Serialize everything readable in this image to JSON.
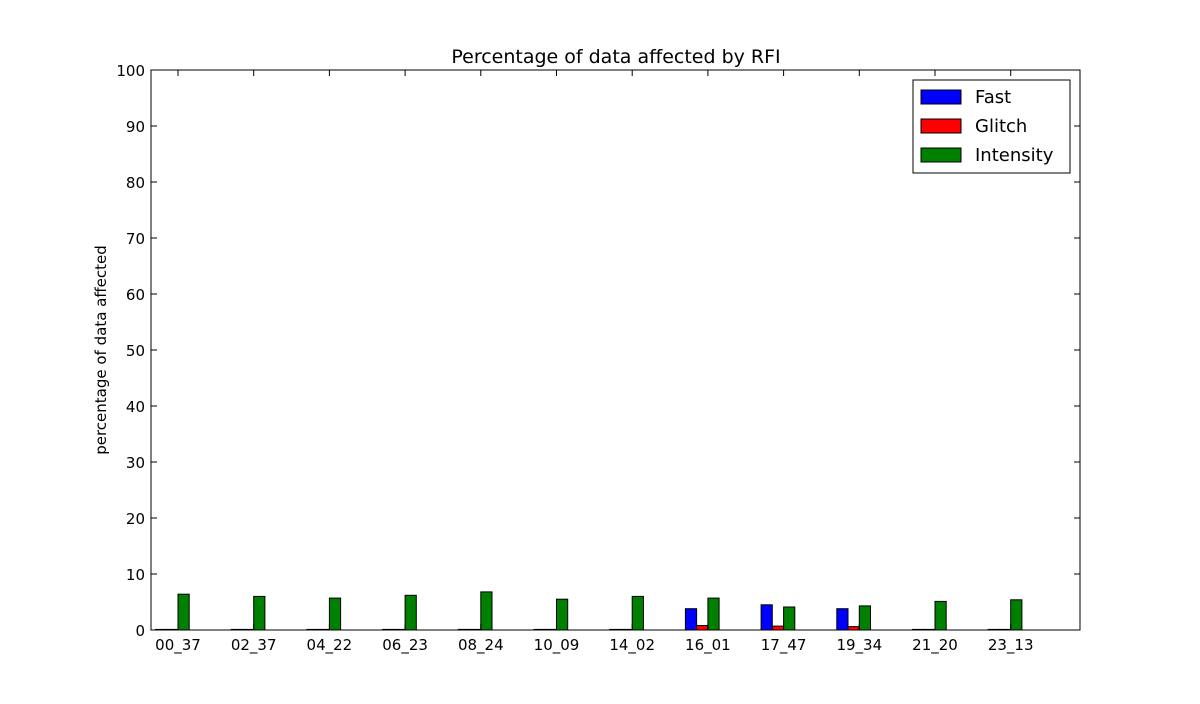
{
  "chart_data": {
    "type": "bar",
    "title": "Percentage of data affected by RFI",
    "xlabel": "",
    "ylabel": "percentage of data affected",
    "ylim": [
      0,
      100
    ],
    "yticks": [
      0,
      10,
      20,
      30,
      40,
      50,
      60,
      70,
      80,
      90,
      100
    ],
    "ytick_labels": [
      "0",
      "10",
      "20",
      "30",
      "40",
      "50",
      "60",
      "70",
      "80",
      "90",
      "100"
    ],
    "categories": [
      "00_37",
      "02_37",
      "04_22",
      "06_23",
      "08_24",
      "10_09",
      "14_02",
      "16_01",
      "17_47",
      "19_34",
      "21_20",
      "23_13"
    ],
    "series": [
      {
        "name": "Fast",
        "color": "#0000ff",
        "values": [
          0.1,
          0.1,
          0.1,
          0.1,
          0.1,
          0.1,
          0.1,
          3.8,
          4.5,
          3.8,
          0.1,
          0.1
        ]
      },
      {
        "name": "Glitch",
        "color": "#ff0000",
        "values": [
          0.1,
          0.1,
          0.1,
          0.1,
          0.1,
          0.1,
          0.1,
          0.8,
          0.7,
          0.6,
          0.1,
          0.1
        ]
      },
      {
        "name": "Intensity",
        "color": "#008000",
        "values": [
          6.4,
          6.0,
          5.7,
          6.2,
          6.8,
          5.5,
          6.0,
          5.7,
          4.1,
          4.3,
          5.1,
          5.4
        ]
      }
    ],
    "grid": false,
    "legend_position": "top-right"
  }
}
